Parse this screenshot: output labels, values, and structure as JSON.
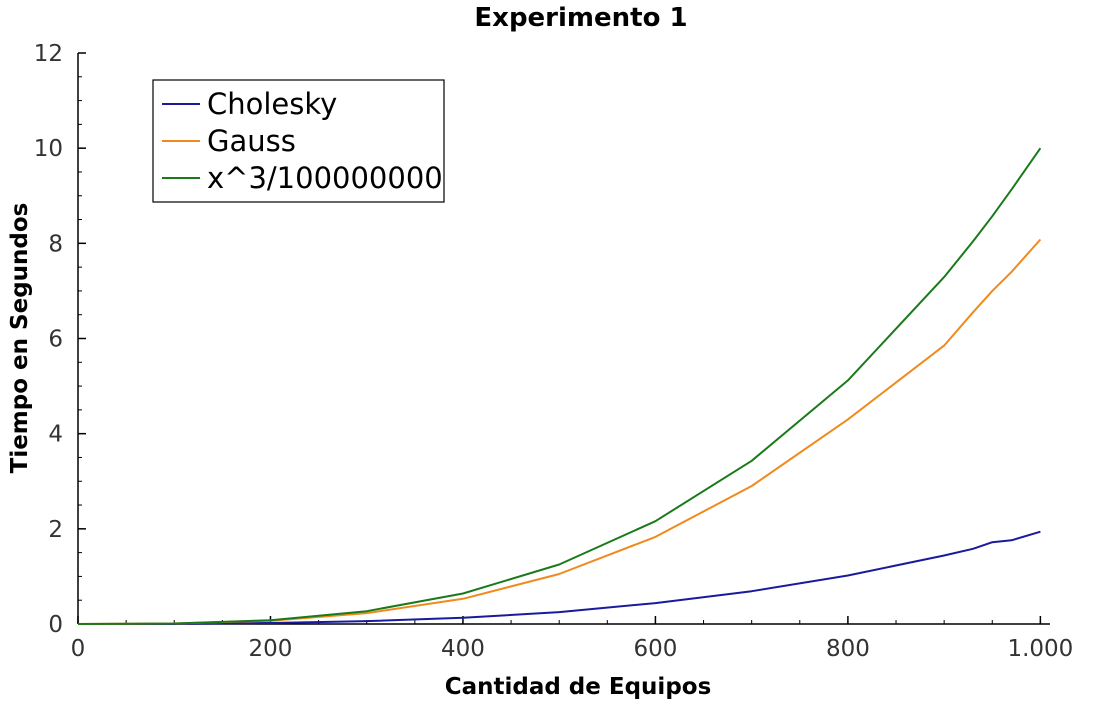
{
  "chart_data": {
    "type": "line",
    "title": "Experimento 1",
    "xlabel": "Cantidad de Equipos",
    "ylabel": "Tiempo en Segundos",
    "xlim": [
      0,
      1010
    ],
    "ylim": [
      0,
      12
    ],
    "x_ticks": [
      0,
      200,
      400,
      600,
      800,
      1000
    ],
    "x_tick_labels": [
      "0",
      "200",
      "400",
      "600",
      "800",
      "1.000"
    ],
    "y_ticks": [
      0,
      2,
      4,
      6,
      8,
      10,
      12
    ],
    "y_tick_labels": [
      "0",
      "2",
      "4",
      "6",
      "8",
      "10",
      "12"
    ],
    "grid": false,
    "legend_position": "top-left",
    "x": [
      0,
      100,
      200,
      300,
      400,
      500,
      600,
      700,
      800,
      900,
      930,
      950,
      970,
      1000
    ],
    "series": [
      {
        "name": "Cholesky",
        "color": "#1a1a9c",
        "values": [
          0,
          0.002,
          0.02,
          0.06,
          0.13,
          0.25,
          0.44,
          0.69,
          1.02,
          1.44,
          1.58,
          1.72,
          1.76,
          1.94
        ]
      },
      {
        "name": "Gauss",
        "color": "#f08a1c",
        "values": [
          0,
          0.01,
          0.07,
          0.23,
          0.53,
          1.05,
          1.83,
          2.9,
          4.3,
          5.85,
          6.55,
          7.0,
          7.4,
          8.08
        ]
      },
      {
        "name": "x^3/100000000",
        "color": "#1a7a1a",
        "values": [
          0,
          0.01,
          0.08,
          0.27,
          0.64,
          1.25,
          2.16,
          3.43,
          5.12,
          7.29,
          8.04,
          8.57,
          9.13,
          10.0
        ]
      }
    ]
  }
}
